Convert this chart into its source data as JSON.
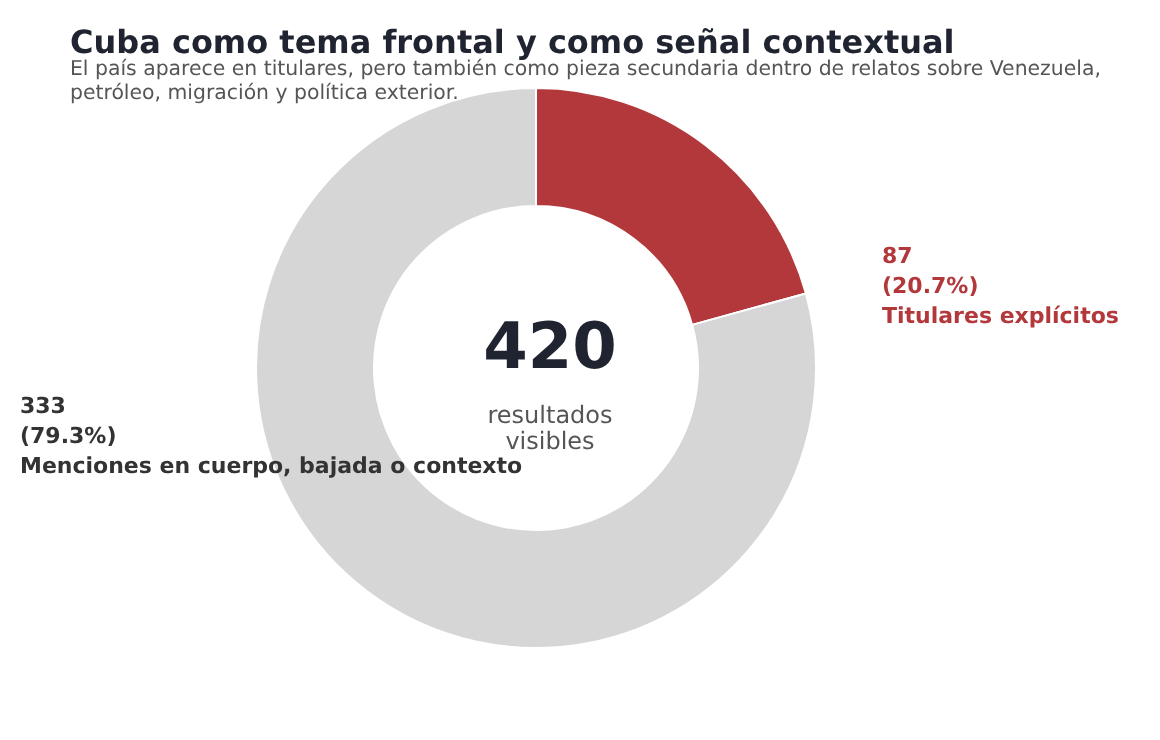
{
  "chart_data": {
    "type": "donut",
    "title": "Cuba como tema frontal y como señal contextual",
    "subtitle": "El país aparece en titulares, pero también como pieza secundaria dentro de relatos sobre Venezuela,\npetróleo, migración y política exterior.",
    "categories": [
      "Titulares explícitos",
      "Menciones en cuerpo, bajada o contexto"
    ],
    "values": [
      87,
      333
    ],
    "colors": [
      "#b3383b",
      "#d6d6d6"
    ],
    "value_labels": [
      "87\n(20.7%)",
      "333\n(79.3%)"
    ],
    "annotations": [
      "420",
      "resultados\nvisibles"
    ],
    "legend": false
  }
}
